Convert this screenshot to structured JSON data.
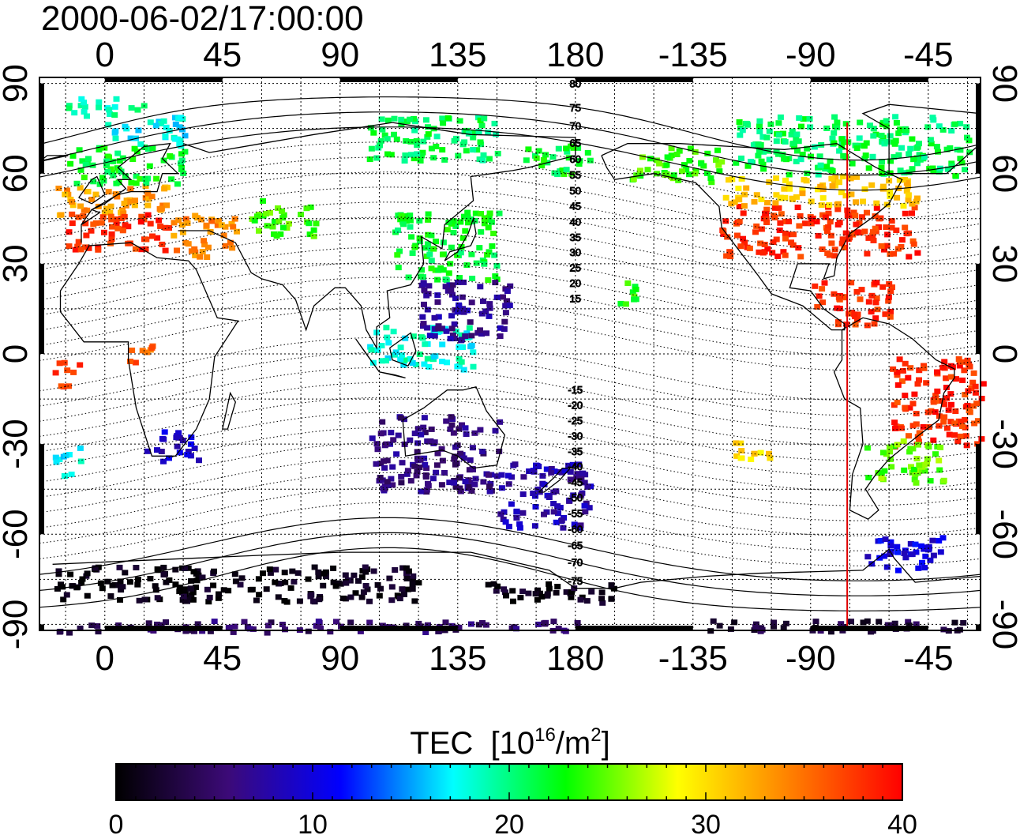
{
  "timestamp": "2000-06-02/17:00:00",
  "map": {
    "lon_ticks": [
      {
        "lon": 0,
        "label": "0"
      },
      {
        "lon": 45,
        "label": "45"
      },
      {
        "lon": 90,
        "label": "90"
      },
      {
        "lon": 135,
        "label": "135"
      },
      {
        "lon": 180,
        "label": "180"
      },
      {
        "lon": 225,
        "label": "-135"
      },
      {
        "lon": 270,
        "label": "-90"
      },
      {
        "lon": 315,
        "label": "-45"
      }
    ],
    "lat_ticks": [
      {
        "lat": 90,
        "label": "90"
      },
      {
        "lat": 60,
        "label": "60"
      },
      {
        "lat": 30,
        "label": "30"
      },
      {
        "lat": 0,
        "label": "0"
      },
      {
        "lat": -30,
        "label": "-30"
      },
      {
        "lat": -60,
        "label": "-60"
      },
      {
        "lat": -90,
        "label": "-90"
      }
    ],
    "lon_range": [
      -25,
      335
    ],
    "lat_range": [
      -92,
      92
    ],
    "grid": "dotted every 15 degrees",
    "terminator_lon": 284,
    "terminator_color": "#e00000",
    "mag_lat_labels": [
      "80",
      "75",
      "70",
      "65",
      "60",
      "55",
      "50",
      "45",
      "40",
      "35",
      "30",
      "25",
      "20",
      "15",
      "-15",
      "-20",
      "-25",
      "-30",
      "-35",
      "-40",
      "-45",
      "-50",
      "-55",
      "-60",
      "-65",
      "-70",
      "-75"
    ]
  },
  "colorbar": {
    "title": "TEC",
    "unit_base": "[10",
    "unit_exp": "16",
    "unit_mid": "/m",
    "unit_exp2": "2",
    "unit_end": "]",
    "range": [
      0,
      40
    ],
    "ticks": [
      {
        "value": 0,
        "label": "0"
      },
      {
        "value": 10,
        "label": "10"
      },
      {
        "value": 20,
        "label": "20"
      },
      {
        "value": 30,
        "label": "30"
      },
      {
        "value": 40,
        "label": "40"
      }
    ],
    "stops": [
      "#000000",
      "#3c0a78",
      "#0000ff",
      "#00ffff",
      "#00ff00",
      "#ffff00",
      "#ff8000",
      "#ff0000"
    ]
  },
  "tec_data": [
    {
      "lon_min": -20,
      "lon_max": 25,
      "lat_min": 47,
      "lat_max": 57,
      "tec": 33
    },
    {
      "lon_min": -15,
      "lon_max": 25,
      "lat_min": 35,
      "lat_max": 48,
      "tec": 38
    },
    {
      "lon_min": -15,
      "lon_max": 30,
      "lat_min": 57,
      "lat_max": 70,
      "tec": 22
    },
    {
      "lon_min": 0,
      "lon_max": 30,
      "lat_min": 70,
      "lat_max": 80,
      "tec": 17
    },
    {
      "lon_min": -15,
      "lon_max": 15,
      "lat_min": 80,
      "lat_max": 86,
      "tec": 19
    },
    {
      "lon_min": 25,
      "lon_max": 50,
      "lat_min": 33,
      "lat_max": 48,
      "tec": 34
    },
    {
      "lon_min": 55,
      "lon_max": 80,
      "lat_min": 40,
      "lat_max": 52,
      "tec": 24
    },
    {
      "lon_min": 110,
      "lon_max": 150,
      "lat_min": 25,
      "lat_max": 48,
      "tec": 22
    },
    {
      "lon_min": 100,
      "lon_max": 150,
      "lat_min": 65,
      "lat_max": 80,
      "tec": 21
    },
    {
      "lon_min": 160,
      "lon_max": 185,
      "lat_min": 60,
      "lat_max": 70,
      "tec": 22
    },
    {
      "lon_min": 200,
      "lon_max": 235,
      "lat_min": 58,
      "lat_max": 70,
      "tec": 24
    },
    {
      "lon_min": 235,
      "lon_max": 310,
      "lat_min": 33,
      "lat_max": 50,
      "tec": 38
    },
    {
      "lon_min": 235,
      "lon_max": 310,
      "lat_min": 50,
      "lat_max": 60,
      "tec": 31
    },
    {
      "lon_min": 240,
      "lon_max": 330,
      "lat_min": 60,
      "lat_max": 80,
      "tec": 21
    },
    {
      "lon_min": 270,
      "lon_max": 300,
      "lat_min": 10,
      "lat_max": 25,
      "tec": 38
    },
    {
      "lon_min": 300,
      "lon_max": 335,
      "lat_min": -30,
      "lat_max": 0,
      "tec": 38
    },
    {
      "lon_min": 290,
      "lon_max": 320,
      "lat_min": -42,
      "lat_max": -28,
      "tec": 25
    },
    {
      "lon_min": 290,
      "lon_max": 320,
      "lat_min": -72,
      "lat_max": -60,
      "tec": 10
    },
    {
      "lon_min": 100,
      "lon_max": 150,
      "lat_min": -45,
      "lat_max": -20,
      "tec": 6
    },
    {
      "lon_min": 150,
      "lon_max": 185,
      "lat_min": -57,
      "lat_max": -35,
      "tec": 8
    },
    {
      "lon_min": -20,
      "lon_max": 120,
      "lat_min": -82,
      "lat_max": -70,
      "tec": 1
    },
    {
      "lon_min": 145,
      "lon_max": 195,
      "lat_min": -82,
      "lat_max": -75,
      "tec": 1
    },
    {
      "lon_min": -20,
      "lon_max": 180,
      "lat_min": -92,
      "lat_max": -88,
      "tec": 5
    },
    {
      "lon_min": 230,
      "lon_max": 330,
      "lat_min": -92,
      "lat_max": -88,
      "tec": 3
    },
    {
      "lon_min": 100,
      "lon_max": 140,
      "lat_min": -5,
      "lat_max": 10,
      "tec": 18
    },
    {
      "lon_min": 120,
      "lon_max": 155,
      "lat_min": 5,
      "lat_max": 25,
      "tec": 7
    },
    {
      "lon_min": -20,
      "lon_max": -10,
      "lat_min": -40,
      "lat_max": -30,
      "tec": 17
    },
    {
      "lon_min": 15,
      "lon_max": 35,
      "lat_min": -35,
      "lat_max": -25,
      "tec": 9
    },
    {
      "lon_min": 195,
      "lon_max": 205,
      "lat_min": 17,
      "lat_max": 25,
      "tec": 23
    },
    {
      "lon_min": 8,
      "lon_max": 18,
      "lat_min": -2,
      "lat_max": 5,
      "tec": 36
    },
    {
      "lon_min": -20,
      "lon_max": -10,
      "lat_min": -10,
      "lat_max": -2,
      "tec": 38
    },
    {
      "lon_min": 240,
      "lon_max": 255,
      "lat_min": -35,
      "lat_max": -28,
      "tec": 30
    }
  ]
}
